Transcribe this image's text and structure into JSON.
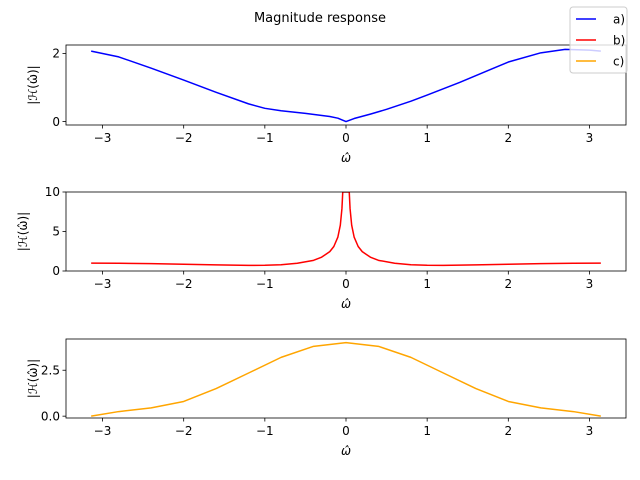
{
  "chart_data": [
    {
      "type": "line",
      "title": "Magnitude response",
      "xlabel": "ω̂",
      "ylabel": "|ℋ(ω̂)|",
      "xlim": [
        -3.45,
        3.45
      ],
      "ylim": [
        -0.1,
        2.25
      ],
      "xticks": [
        -3,
        -2,
        -1,
        0,
        1,
        2,
        3
      ],
      "yticks": [
        0,
        2
      ],
      "grid": false,
      "series": [
        {
          "name": "a)",
          "color": "#0000ff",
          "x": [
            -3.14,
            -2.8,
            -2.4,
            -2.0,
            -1.6,
            -1.2,
            -1.0,
            -0.8,
            -0.5,
            -0.2,
            -0.1,
            0,
            0.1,
            0.3,
            0.5,
            0.8,
            1.0,
            1.4,
            1.8,
            2.0,
            2.4,
            2.7,
            3.0,
            3.14
          ],
          "y": [
            2.07,
            1.9,
            1.57,
            1.22,
            0.86,
            0.52,
            0.39,
            0.32,
            0.24,
            0.15,
            0.1,
            0.0,
            0.09,
            0.22,
            0.36,
            0.6,
            0.78,
            1.15,
            1.55,
            1.75,
            2.02,
            2.12,
            2.1,
            2.07
          ]
        }
      ]
    },
    {
      "type": "line",
      "xlabel": "ω̂",
      "ylabel": "|ℋ(ω̂)|",
      "xlim": [
        -3.45,
        3.45
      ],
      "ylim": [
        0,
        10
      ],
      "xticks": [
        -3,
        -2,
        -1,
        0,
        1,
        2,
        3
      ],
      "yticks": [
        0,
        5,
        10
      ],
      "grid": false,
      "series": [
        {
          "name": "b)",
          "color": "#ff0000",
          "x": [
            -3.14,
            -2.8,
            -2.4,
            -2.0,
            -1.6,
            -1.2,
            -1.0,
            -0.8,
            -0.6,
            -0.4,
            -0.3,
            -0.2,
            -0.15,
            -0.1,
            -0.07,
            -0.05,
            -0.04,
            0.04,
            0.05,
            0.07,
            0.1,
            0.15,
            0.2,
            0.3,
            0.4,
            0.6,
            0.8,
            1.0,
            1.2,
            1.6,
            2.0,
            2.4,
            2.8,
            3.14
          ],
          "y": [
            1.0,
            0.98,
            0.93,
            0.85,
            0.77,
            0.71,
            0.72,
            0.79,
            0.98,
            1.35,
            1.75,
            2.45,
            3.1,
            4.3,
            5.8,
            7.9,
            10.0,
            10.0,
            7.9,
            5.8,
            4.3,
            3.1,
            2.45,
            1.75,
            1.35,
            0.98,
            0.79,
            0.72,
            0.71,
            0.77,
            0.85,
            0.93,
            0.98,
            1.0
          ]
        }
      ]
    },
    {
      "type": "line",
      "xlabel": "ω̂",
      "ylabel": "|ℋ(ω̂)|",
      "xlim": [
        -3.45,
        3.45
      ],
      "ylim": [
        -0.1,
        4.2
      ],
      "xticks": [
        -3,
        -2,
        -1,
        0,
        1,
        2,
        3
      ],
      "yticks": [
        0.0,
        2.5
      ],
      "yticklabels": [
        "0.0",
        "2.5"
      ],
      "grid": false,
      "series": [
        {
          "name": "c)",
          "color": "#ffa500",
          "x": [
            -3.14,
            -2.8,
            -2.4,
            -2.0,
            -1.6,
            -1.2,
            -0.8,
            -0.4,
            0,
            0.4,
            0.8,
            1.2,
            1.6,
            2.0,
            2.4,
            2.8,
            3.14
          ],
          "y": [
            0.0,
            0.25,
            0.45,
            0.8,
            1.5,
            2.35,
            3.2,
            3.8,
            4.0,
            3.8,
            3.2,
            2.35,
            1.5,
            0.8,
            0.45,
            0.25,
            0.0
          ]
        }
      ]
    }
  ],
  "legend": {
    "placement": "top-right",
    "entries": [
      {
        "label": "a)",
        "color": "#0000ff"
      },
      {
        "label": "b)",
        "color": "#ff0000"
      },
      {
        "label": "c)",
        "color": "#ffa500"
      }
    ]
  }
}
